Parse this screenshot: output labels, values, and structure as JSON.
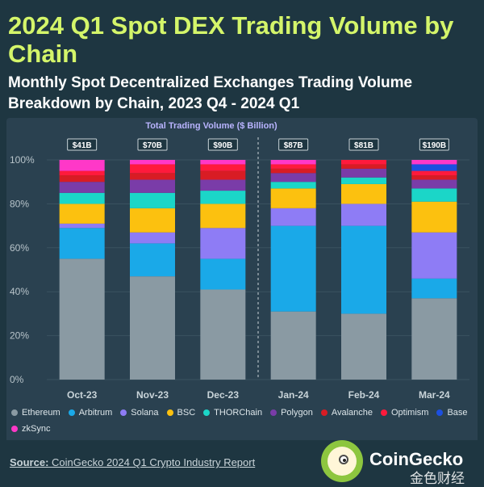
{
  "header": {
    "title": "2024 Q1 Spot DEX Trading Volume by Chain",
    "subtitle": "Monthly Spot Decentralized Exchanges Trading Volume Breakdown by Chain, 2023 Q4 - 2024 Q1"
  },
  "chart_data": {
    "type": "bar",
    "stacked": true,
    "normalized": true,
    "annotation_title": "Total Trading Volume ($ Billion)",
    "categories": [
      "Oct-23",
      "Nov-23",
      "Dec-23",
      "Jan-24",
      "Feb-24",
      "Mar-24"
    ],
    "totals": [
      "$41B",
      "$70B",
      "$90B",
      "$87B",
      "$81B",
      "$190B"
    ],
    "ylim": [
      0,
      100
    ],
    "yticks": [
      "0%",
      "20%",
      "40%",
      "60%",
      "80%",
      "100%"
    ],
    "grid": true,
    "legend_position": "bottom",
    "divider_between": [
      "Dec-23",
      "Jan-24"
    ],
    "series": [
      {
        "name": "Ethereum",
        "color": "#8a9aa3",
        "values": [
          55,
          47,
          41,
          31,
          30,
          37
        ]
      },
      {
        "name": "Arbitrum",
        "color": "#1aa9e8",
        "values": [
          14,
          15,
          14,
          39,
          40,
          9
        ]
      },
      {
        "name": "Solana",
        "color": "#8e7cf5",
        "values": [
          2,
          5,
          14,
          8,
          10,
          21
        ]
      },
      {
        "name": "BSC",
        "color": "#fcc10f",
        "values": [
          9,
          11,
          11,
          9,
          9,
          14
        ]
      },
      {
        "name": "THORChain",
        "color": "#1bd6c8",
        "values": [
          5,
          7,
          6,
          3,
          3,
          6
        ]
      },
      {
        "name": "Polygon",
        "color": "#7a3ca8",
        "values": [
          5,
          6,
          5,
          4,
          4,
          4
        ]
      },
      {
        "name": "Avalanche",
        "color": "#d81c24",
        "values": [
          3,
          3,
          4,
          2,
          2,
          2
        ]
      },
      {
        "name": "Optimism",
        "color": "#ff1a3c",
        "values": [
          2,
          4,
          3,
          2,
          2,
          2
        ]
      },
      {
        "name": "Base",
        "color": "#1c4fe0",
        "values": [
          0,
          0,
          0,
          0,
          0,
          3
        ]
      },
      {
        "name": "zkSync",
        "color": "#ff38c8",
        "values": [
          5,
          2,
          2,
          2,
          0,
          2
        ]
      }
    ]
  },
  "footer": {
    "source_label": "Source:",
    "source_text": "CoinGecko 2024 Q1 Crypto Industry Report",
    "brand": "CoinGecko",
    "watermark": "金色财经"
  }
}
